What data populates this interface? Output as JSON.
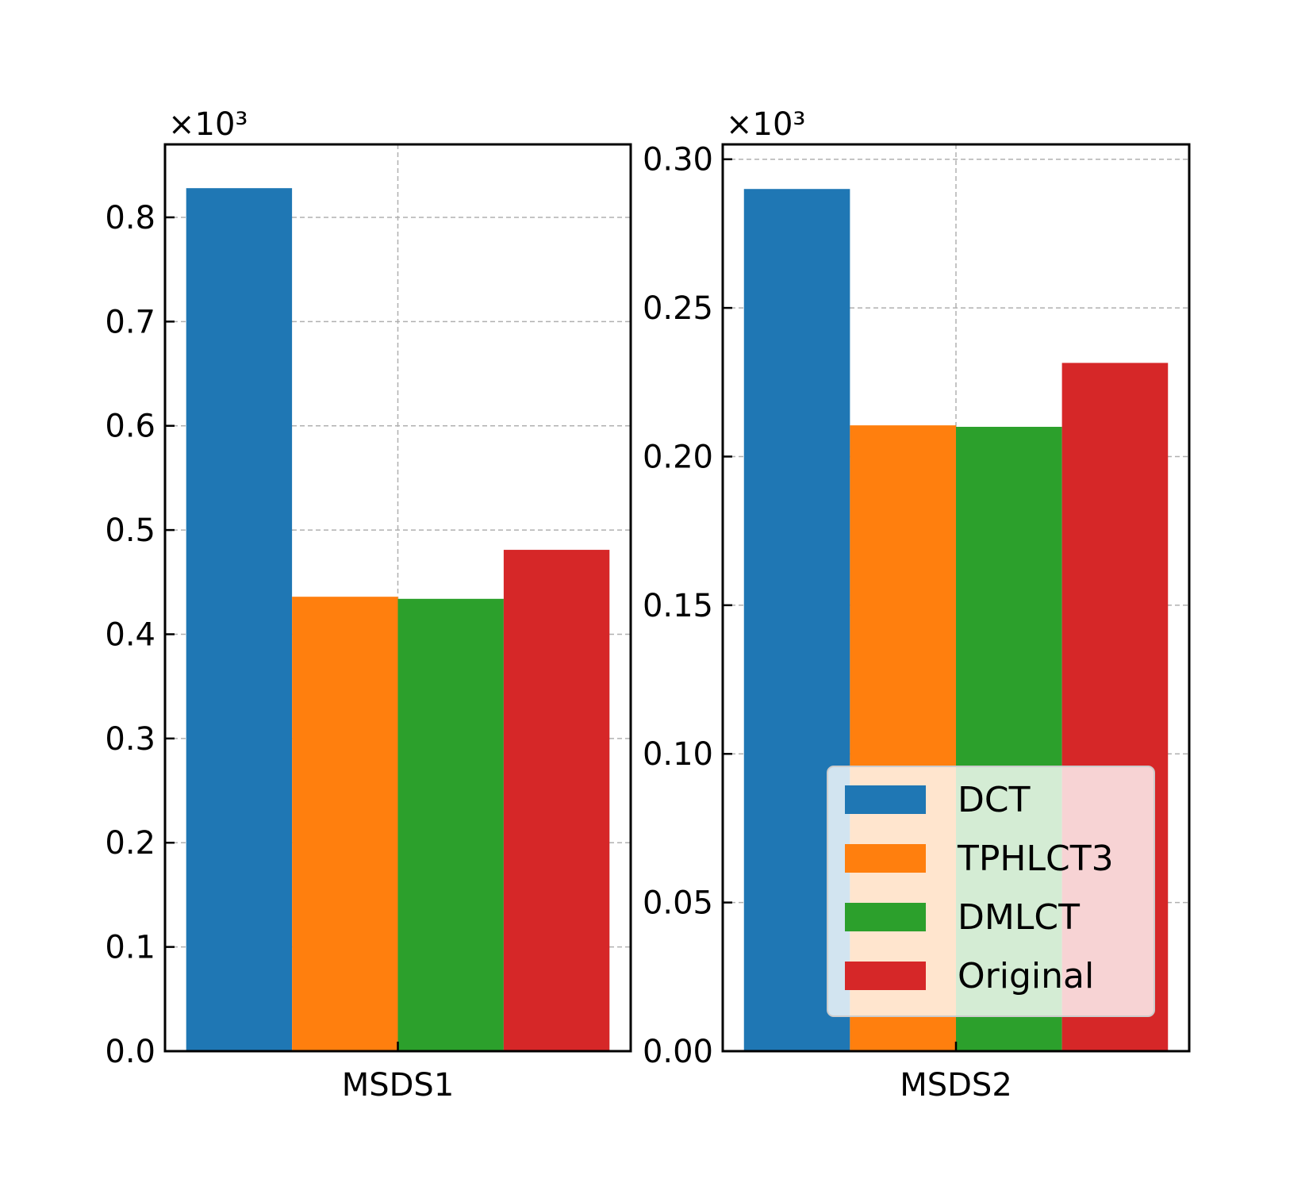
{
  "chart_data": [
    {
      "type": "bar",
      "categories": [
        "MSDS1"
      ],
      "series": [
        {
          "name": "DCT",
          "values": [
            828
          ],
          "color": "#1f77b4"
        },
        {
          "name": "TPHLCT3",
          "values": [
            436
          ],
          "color": "#ff7f0e"
        },
        {
          "name": "DMLCT",
          "values": [
            434
          ],
          "color": "#2ca02c"
        },
        {
          "name": "Original",
          "values": [
            481
          ],
          "color": "#d62728"
        }
      ],
      "scale_label": "×10³",
      "ylim": [
        0,
        870
      ],
      "yticks": [
        0,
        100,
        200,
        300,
        400,
        500,
        600,
        700,
        800
      ],
      "ytick_labels": [
        "0.0",
        "0.1",
        "0.2",
        "0.3",
        "0.4",
        "0.5",
        "0.6",
        "0.7",
        "0.8"
      ],
      "grid": true,
      "legend": false
    },
    {
      "type": "bar",
      "categories": [
        "MSDS2"
      ],
      "series": [
        {
          "name": "DCT",
          "values": [
            290
          ],
          "color": "#1f77b4"
        },
        {
          "name": "TPHLCT3",
          "values": [
            210.5
          ],
          "color": "#ff7f0e"
        },
        {
          "name": "DMLCT",
          "values": [
            210
          ],
          "color": "#2ca02c"
        },
        {
          "name": "Original",
          "values": [
            231.5
          ],
          "color": "#d62728"
        }
      ],
      "scale_label": "×10³",
      "ylim": [
        0,
        305
      ],
      "yticks": [
        0,
        50,
        100,
        150,
        200,
        250,
        300
      ],
      "ytick_labels": [
        "0.00",
        "0.05",
        "0.10",
        "0.15",
        "0.20",
        "0.25",
        "0.30"
      ],
      "grid": true,
      "legend": true,
      "legend_position": "lower-right"
    }
  ]
}
